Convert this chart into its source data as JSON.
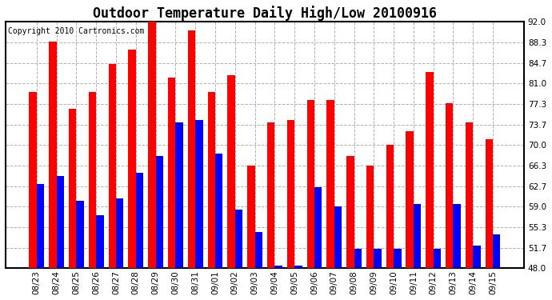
{
  "title": "Outdoor Temperature Daily High/Low 20100916",
  "copyright": "Copyright 2010 Cartronics.com",
  "dates": [
    "08/23",
    "08/24",
    "08/25",
    "08/26",
    "08/27",
    "08/28",
    "08/29",
    "08/30",
    "08/31",
    "09/01",
    "09/02",
    "09/03",
    "09/04",
    "09/05",
    "09/06",
    "09/07",
    "09/08",
    "09/09",
    "09/10",
    "09/11",
    "09/12",
    "09/13",
    "09/14",
    "09/15"
  ],
  "highs": [
    79.5,
    88.5,
    76.5,
    79.5,
    84.5,
    87.0,
    92.0,
    82.0,
    90.5,
    79.5,
    82.5,
    66.3,
    74.0,
    74.5,
    78.0,
    78.0,
    68.0,
    66.3,
    70.0,
    72.5,
    83.0,
    77.5,
    74.0,
    71.0
  ],
  "lows": [
    63.0,
    64.5,
    60.0,
    57.5,
    60.5,
    65.0,
    68.0,
    74.0,
    74.5,
    68.5,
    58.5,
    54.5,
    48.5,
    48.5,
    62.5,
    59.0,
    51.5,
    51.5,
    51.5,
    59.5,
    51.5,
    59.5,
    52.0,
    54.0
  ],
  "high_color": "#FF0000",
  "low_color": "#0000FF",
  "bg_color": "#FFFFFF",
  "plot_bg_color": "#FFFFFF",
  "grid_color": "#AAAAAA",
  "yticks": [
    48.0,
    51.7,
    55.3,
    59.0,
    62.7,
    66.3,
    70.0,
    73.7,
    77.3,
    81.0,
    84.7,
    88.3,
    92.0
  ],
  "ymin": 48.0,
  "ymax": 92.0,
  "bar_width": 0.38,
  "title_fontsize": 12,
  "copyright_fontsize": 7.0,
  "tick_fontsize": 7.5
}
